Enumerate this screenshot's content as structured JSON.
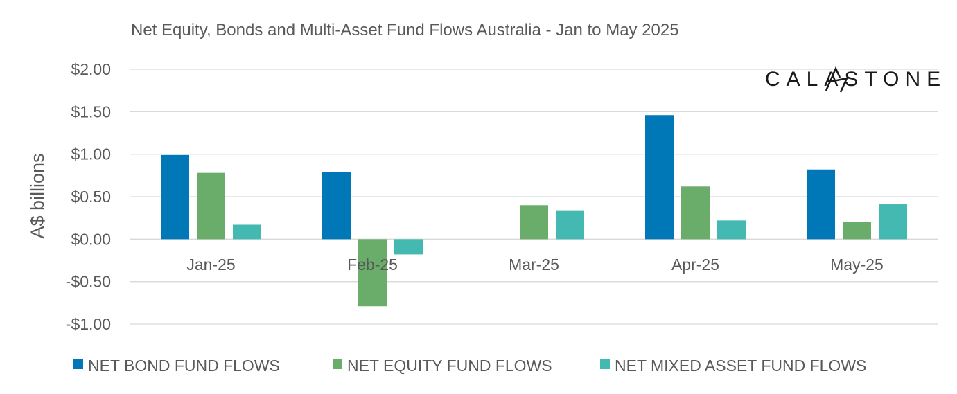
{
  "chart_data": {
    "type": "bar",
    "title": "Net Equity, Bonds and Multi-Asset Fund Flows Australia - Jan to May 2025",
    "xlabel": "",
    "ylabel": "A$ billions",
    "ylim": [
      -1.0,
      2.0
    ],
    "yticks": [
      2.0,
      1.5,
      1.0,
      0.5,
      0.0,
      -0.5,
      -1.0
    ],
    "ytick_labels": [
      "$2.00",
      "$1.50",
      "$1.00",
      "$0.50",
      "$0.00",
      "-$0.50",
      "-$1.00"
    ],
    "grid": true,
    "legend_position": "bottom",
    "categories": [
      "Jan-25",
      "Feb-25",
      "Mar-25",
      "Apr-25",
      "May-25"
    ],
    "series": [
      {
        "name": "NET BOND FUND FLOWS",
        "color": "#0077B6",
        "values": [
          0.99,
          0.79,
          0.0,
          1.46,
          0.82
        ]
      },
      {
        "name": "NET EQUITY FUND FLOWS",
        "color": "#6AAD6A",
        "values": [
          0.78,
          -0.79,
          0.4,
          0.62,
          0.2
        ]
      },
      {
        "name": "NET MIXED ASSET FUND FLOWS",
        "color": "#44B9B1",
        "values": [
          0.17,
          -0.18,
          0.34,
          0.22,
          0.41
        ]
      }
    ]
  },
  "logo": {
    "text": "CALASTONE"
  }
}
